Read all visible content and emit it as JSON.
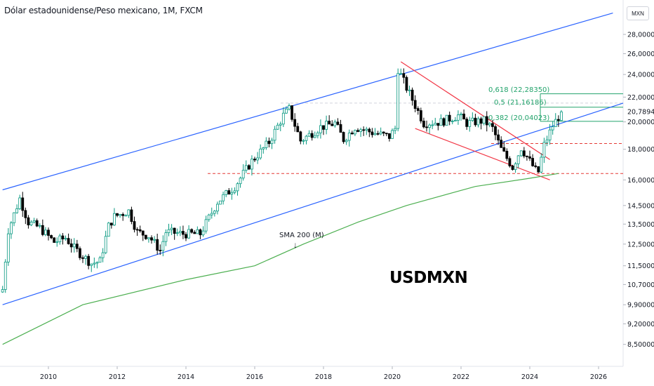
{
  "header": {
    "title": "Dólar estadounidense/Peso mexicano, 1M, FXCM",
    "currency": "MXN"
  },
  "annotations": {
    "symbol": "USDMXN",
    "sma_label": "SMA 200 (M)",
    "sma_arrow": "↓"
  },
  "fib_levels": [
    {
      "label": "0,618 (22,28350)",
      "value": 22.2835
    },
    {
      "label": "0,5 (21,16186)",
      "value": 21.16186
    },
    {
      "label": "0,382 (20,04023)",
      "value": 20.04023
    }
  ],
  "colors": {
    "up": "#089981",
    "down": "#000000",
    "channel": "#2962ff",
    "wedge": "#f23645",
    "sma": "#4caf50",
    "fib": "#22a36b",
    "support": "#e53935"
  },
  "chart_data": {
    "type": "candlestick",
    "title": "Dólar estadounidense/Peso mexicano, 1M, FXCM",
    "x_ticks": [
      "2010",
      "2012",
      "2014",
      "2016",
      "2018",
      "2020",
      "2022",
      "2024",
      "2026"
    ],
    "y_ticks": [
      "28,00000",
      "26,00000",
      "24,00000",
      "22,00000",
      "20,00000",
      "18,00000",
      "16,00000",
      "14,50000",
      "13,50000",
      "12,50000",
      "11,50000",
      "10,70000",
      "9,90000",
      "9,20000",
      "8,50000"
    ],
    "y_scale": "log",
    "last_price": "20,78947",
    "close_path": [
      [
        "2008-09",
        10.5
      ],
      [
        "2008-11",
        13.2
      ],
      [
        "2009-03",
        14.9
      ],
      [
        "2009-06",
        13.6
      ],
      [
        "2009-10",
        13.3
      ],
      [
        "2010-03",
        12.6
      ],
      [
        "2010-07",
        12.8
      ],
      [
        "2010-10",
        12.3
      ],
      [
        "2011-04",
        11.6
      ],
      [
        "2011-07",
        11.7
      ],
      [
        "2011-10",
        13.4
      ],
      [
        "2011-12",
        13.9
      ],
      [
        "2012-05",
        14.2
      ],
      [
        "2012-08",
        13.1
      ],
      [
        "2012-12",
        12.9
      ],
      [
        "2013-04",
        12.2
      ],
      [
        "2013-06",
        13.1
      ],
      [
        "2013-12",
        13.0
      ],
      [
        "2014-06",
        13.0
      ],
      [
        "2014-12",
        14.7
      ],
      [
        "2015-06",
        15.6
      ],
      [
        "2015-12",
        17.2
      ],
      [
        "2016-06",
        18.5
      ],
      [
        "2016-11",
        20.5
      ],
      [
        "2017-01",
        21.0
      ],
      [
        "2017-05",
        18.6
      ],
      [
        "2017-12",
        19.6
      ],
      [
        "2018-05",
        19.9
      ],
      [
        "2018-08",
        18.7
      ],
      [
        "2018-12",
        19.6
      ],
      [
        "2019-06",
        19.2
      ],
      [
        "2019-12",
        18.9
      ],
      [
        "2020-02",
        19.5
      ],
      [
        "2020-03",
        24.5
      ],
      [
        "2020-06",
        22.8
      ],
      [
        "2020-12",
        19.9
      ],
      [
        "2021-06",
        20.0
      ],
      [
        "2021-12",
        20.5
      ],
      [
        "2022-03",
        19.9
      ],
      [
        "2022-09",
        20.1
      ],
      [
        "2022-12",
        19.5
      ],
      [
        "2023-03",
        18.0
      ],
      [
        "2023-07",
        16.8
      ],
      [
        "2023-10",
        18.1
      ],
      [
        "2024-03",
        16.6
      ],
      [
        "2024-04",
        16.5
      ],
      [
        "2024-06",
        18.3
      ],
      [
        "2024-09",
        19.7
      ],
      [
        "2024-11",
        20.4
      ],
      [
        "2024-12",
        20.79
      ]
    ],
    "sma200": [
      [
        "2008-09",
        8.5
      ],
      [
        "2011-01",
        9.9
      ],
      [
        "2014-01",
        10.9
      ],
      [
        "2016-01",
        11.5
      ],
      [
        "2017-06",
        12.5
      ],
      [
        "2019-01",
        13.6
      ],
      [
        "2020-06",
        14.5
      ],
      [
        "2022-06",
        15.6
      ],
      [
        "2024-01",
        16.1
      ],
      [
        "2024-11",
        16.4
      ]
    ],
    "support_levels": [
      16.4,
      18.4,
      21.5
    ],
    "channel": {
      "lower": [
        [
          "2008-09",
          9.9
        ],
        [
          "2024-12",
          19.9
        ]
      ],
      "upper": [
        [
          "2008-09",
          15.4
        ],
        [
          "2026-06",
          30.4
        ]
      ]
    },
    "wedge": {
      "upper": [
        [
          "2020-04",
          25.2
        ],
        [
          "2024-08",
          17.3
        ]
      ],
      "lower": [
        [
          "2020-09",
          19.5
        ],
        [
          "2024-08",
          16.0
        ]
      ]
    }
  }
}
